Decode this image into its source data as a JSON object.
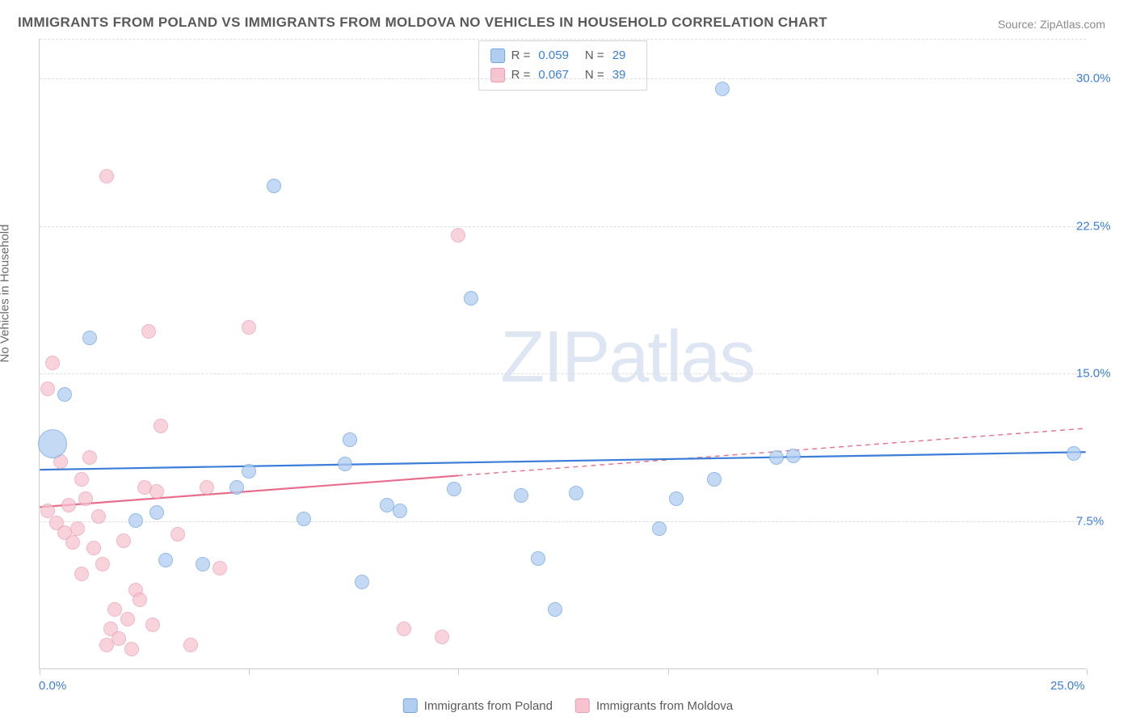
{
  "title": "IMMIGRANTS FROM POLAND VS IMMIGRANTS FROM MOLDOVA NO VEHICLES IN HOUSEHOLD CORRELATION CHART",
  "source": "Source: ZipAtlas.com",
  "ylabel": "No Vehicles in Household",
  "watermark": "ZIPatlas",
  "chart": {
    "type": "scatter",
    "xlim": [
      0,
      25
    ],
    "ylim": [
      0,
      32
    ],
    "ytick_values": [
      7.5,
      15.0,
      22.5,
      30.0
    ],
    "ytick_labels": [
      "7.5%",
      "15.0%",
      "22.5%",
      "30.0%"
    ],
    "xtick_values": [
      0,
      5,
      10,
      15,
      20,
      25
    ],
    "xtick_visible_labels": {
      "0": "0.0%",
      "25": "25.0%"
    },
    "grid_color": "#dedede",
    "axis_color": "#cccccc",
    "background_color": "#ffffff",
    "tick_label_color": "#3b7dd8",
    "tick_label_fontsize": 15,
    "axis_label_fontsize": 15,
    "axis_label_color": "#6b6b6b",
    "title_fontsize": 17,
    "title_color": "#5a5a5a"
  },
  "series": {
    "poland": {
      "label": "Immigrants from Poland",
      "r_value": "0.059",
      "n_value": "29",
      "marker_fill": "#b1cdf0",
      "marker_stroke": "#6ea6e2",
      "marker_opacity": 0.75,
      "default_size": 18,
      "line_color": "#3b7dd8",
      "line_width": 2.2,
      "regression": {
        "x1": 0,
        "y1": 10.1,
        "x2": 25,
        "y2": 11.0
      },
      "points": [
        {
          "x": 0.3,
          "y": 11.4,
          "s": 36
        },
        {
          "x": 0.6,
          "y": 13.9
        },
        {
          "x": 1.2,
          "y": 16.8
        },
        {
          "x": 2.3,
          "y": 7.5
        },
        {
          "x": 2.8,
          "y": 7.9
        },
        {
          "x": 3.0,
          "y": 5.5
        },
        {
          "x": 3.9,
          "y": 5.3
        },
        {
          "x": 4.7,
          "y": 9.2
        },
        {
          "x": 5.0,
          "y": 10.0
        },
        {
          "x": 5.6,
          "y": 24.5
        },
        {
          "x": 6.3,
          "y": 7.6
        },
        {
          "x": 7.3,
          "y": 10.4
        },
        {
          "x": 7.4,
          "y": 11.6
        },
        {
          "x": 7.7,
          "y": 4.4
        },
        {
          "x": 8.3,
          "y": 8.3
        },
        {
          "x": 8.6,
          "y": 8.0
        },
        {
          "x": 9.9,
          "y": 9.1
        },
        {
          "x": 10.3,
          "y": 18.8
        },
        {
          "x": 11.5,
          "y": 8.8
        },
        {
          "x": 11.9,
          "y": 5.6
        },
        {
          "x": 12.3,
          "y": 3.0
        },
        {
          "x": 12.8,
          "y": 8.9
        },
        {
          "x": 14.8,
          "y": 7.1
        },
        {
          "x": 15.2,
          "y": 8.6
        },
        {
          "x": 16.1,
          "y": 9.6
        },
        {
          "x": 16.3,
          "y": 29.4
        },
        {
          "x": 17.6,
          "y": 10.7
        },
        {
          "x": 18.0,
          "y": 10.8
        },
        {
          "x": 24.7,
          "y": 10.9
        }
      ]
    },
    "moldova": {
      "label": "Immigrants from Moldova",
      "r_value": "0.067",
      "n_value": "39",
      "marker_fill": "#f6c3cf",
      "marker_stroke": "#ea9db2",
      "marker_opacity": 0.72,
      "default_size": 18,
      "line_color": "#e76f8c",
      "line_width": 2.2,
      "regression_solid": {
        "x1": 0,
        "y1": 8.2,
        "x2": 10,
        "y2": 9.8
      },
      "regression_dashed": {
        "x1": 10,
        "y1": 9.8,
        "x2": 25,
        "y2": 12.2
      },
      "points": [
        {
          "x": 0.2,
          "y": 8.0
        },
        {
          "x": 0.2,
          "y": 14.2
        },
        {
          "x": 0.3,
          "y": 15.5
        },
        {
          "x": 0.4,
          "y": 7.4
        },
        {
          "x": 0.5,
          "y": 10.5
        },
        {
          "x": 0.6,
          "y": 6.9
        },
        {
          "x": 0.7,
          "y": 8.3
        },
        {
          "x": 0.8,
          "y": 6.4
        },
        {
          "x": 0.9,
          "y": 7.1
        },
        {
          "x": 1.0,
          "y": 9.6
        },
        {
          "x": 1.0,
          "y": 4.8
        },
        {
          "x": 1.1,
          "y": 8.6
        },
        {
          "x": 1.2,
          "y": 10.7
        },
        {
          "x": 1.3,
          "y": 6.1
        },
        {
          "x": 1.4,
          "y": 7.7
        },
        {
          "x": 1.5,
          "y": 5.3
        },
        {
          "x": 1.6,
          "y": 1.2
        },
        {
          "x": 1.6,
          "y": 25.0
        },
        {
          "x": 1.7,
          "y": 2.0
        },
        {
          "x": 1.8,
          "y": 3.0
        },
        {
          "x": 1.9,
          "y": 1.5
        },
        {
          "x": 2.0,
          "y": 6.5
        },
        {
          "x": 2.1,
          "y": 2.5
        },
        {
          "x": 2.2,
          "y": 1.0
        },
        {
          "x": 2.3,
          "y": 4.0
        },
        {
          "x": 2.4,
          "y": 3.5
        },
        {
          "x": 2.5,
          "y": 9.2
        },
        {
          "x": 2.6,
          "y": 17.1
        },
        {
          "x": 2.7,
          "y": 2.2
        },
        {
          "x": 2.8,
          "y": 9.0
        },
        {
          "x": 2.9,
          "y": 12.3
        },
        {
          "x": 3.3,
          "y": 6.8
        },
        {
          "x": 3.6,
          "y": 1.2
        },
        {
          "x": 4.0,
          "y": 9.2
        },
        {
          "x": 4.3,
          "y": 5.1
        },
        {
          "x": 5.0,
          "y": 17.3
        },
        {
          "x": 8.7,
          "y": 2.0
        },
        {
          "x": 9.6,
          "y": 1.6
        },
        {
          "x": 10.0,
          "y": 22.0
        }
      ]
    }
  },
  "legend_top": {
    "border_color": "#d5d5d5",
    "r_label": "R =",
    "n_label": "N ="
  },
  "legend_bottom": {
    "items": [
      "poland",
      "moldova"
    ]
  },
  "watermark_style": {
    "color": "#a8c0de",
    "opacity": 0.38,
    "fontsize": 90,
    "left_pct": 44,
    "top_pct": 44
  }
}
